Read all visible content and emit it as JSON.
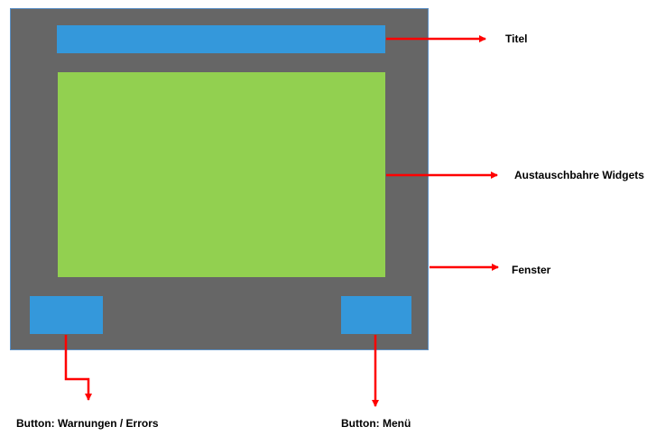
{
  "colors": {
    "window": "#666666",
    "title_bar": "#3498db",
    "widget_area": "#92d050",
    "buttons": "#3498db",
    "arrows": "#ff0000"
  },
  "labels": {
    "titel": "Titel",
    "widgets": "Austauschbahre Widgets",
    "fenster": "Fenster",
    "button_warnungen": "Button: Warnungen / Errors",
    "button_menu": "Button: Menü"
  }
}
